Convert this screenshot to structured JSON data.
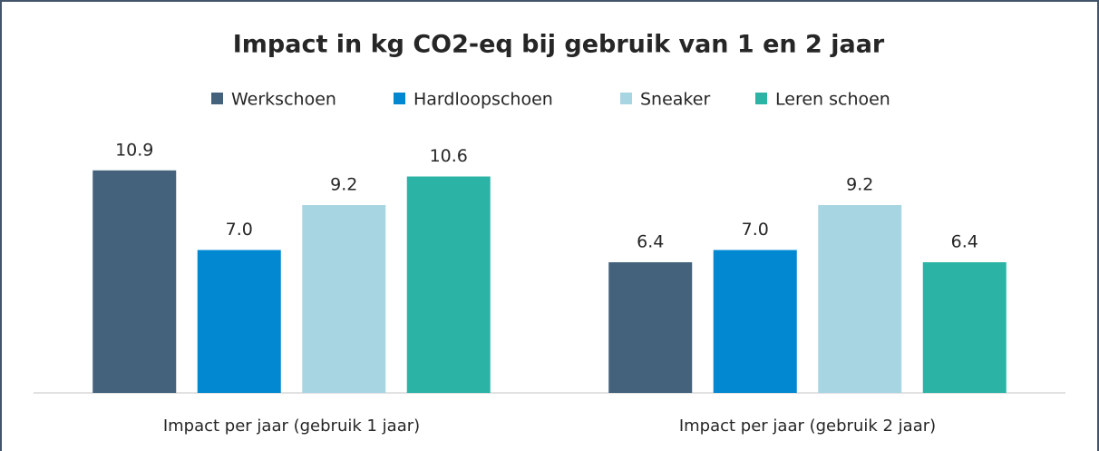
{
  "chart_data": {
    "type": "bar",
    "title": "Impact in kg CO2-eq bij gebruik van 1 en 2 jaar",
    "categories": [
      "Impact per jaar (gebruik 1 jaar)",
      "Impact per jaar (gebruik 2 jaar)"
    ],
    "series": [
      {
        "name": "Werkschoen",
        "color": "#44627c",
        "values": [
          10.9,
          6.4
        ],
        "value_labels": [
          "10.9",
          "6.4"
        ]
      },
      {
        "name": "Hardloopschoen",
        "color": "#0288d1",
        "values": [
          7,
          7
        ],
        "value_labels": [
          "7.0",
          "7.0"
        ]
      },
      {
        "name": "Sneaker",
        "color": "#a8d5e2",
        "values": [
          9.2,
          9.2
        ],
        "value_labels": [
          "9.2",
          "9.2"
        ]
      },
      {
        "name": "Leren schoen",
        "color": "#2bb3a6",
        "values": [
          10.6,
          6.4
        ],
        "value_labels": [
          "10.6",
          "6.4"
        ]
      }
    ],
    "legend": "top"
  }
}
